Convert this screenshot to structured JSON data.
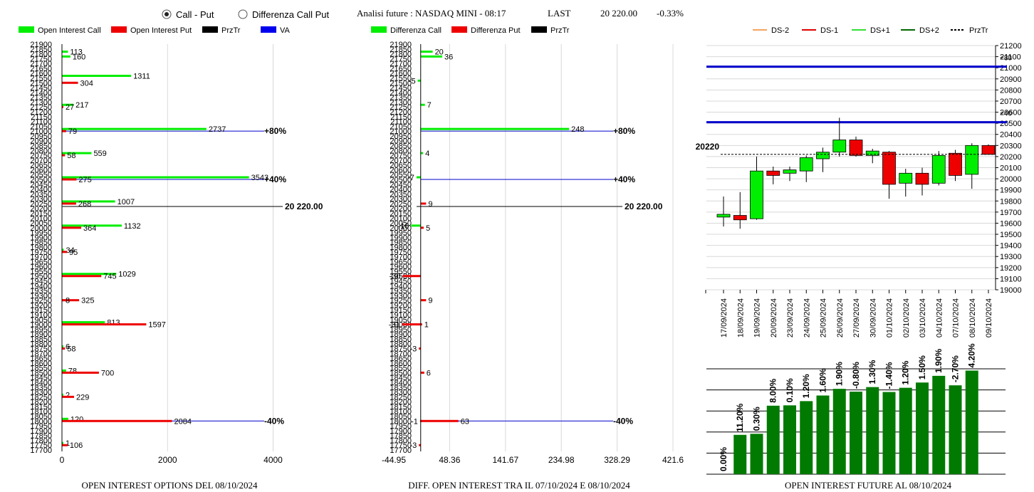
{
  "header": {
    "radio_call_put": "Call - Put",
    "radio_diff": "Differenza Call Put",
    "radio_selected": "call_put",
    "title": "Analisi future : NASDAQ MINI - 08:17",
    "last_label": "LAST",
    "last_value": "20 220.00",
    "change": "-0.33%"
  },
  "legends": {
    "oi": [
      {
        "label": "Open Interest Call",
        "color": "#00ee00"
      },
      {
        "label": "Open Interest Put",
        "color": "#ee0000"
      },
      {
        "label": "PrzTr",
        "color": "#000000"
      },
      {
        "label": "VA",
        "color": "#0000ee"
      }
    ],
    "diff": [
      {
        "label": "Differenza Call",
        "color": "#00ee00"
      },
      {
        "label": "Differenza Put",
        "color": "#ee0000"
      },
      {
        "label": "PrzTr",
        "color": "#000000"
      }
    ],
    "candle": [
      {
        "label": "DS-2",
        "color": "#f4a460",
        "style": "solid"
      },
      {
        "label": "DS-1",
        "color": "#dd0000",
        "style": "solid"
      },
      {
        "label": "DS+1",
        "color": "#33dd33",
        "style": "solid"
      },
      {
        "label": "DS+2",
        "color": "#006600",
        "style": "solid"
      },
      {
        "label": "PrzTr",
        "color": "#000000",
        "style": "dashed"
      }
    ]
  },
  "footer": {
    "oi": "OPEN INTEREST OPTIONS DEL 08/10/2024",
    "diff": "DIFF. OPEN INTEREST TRA IL 07/10/2024 E 08/10/2024",
    "future": "OPEN INTEREST FUTURE AL 08/10/2024"
  },
  "chart_data": [
    {
      "id": "oi",
      "type": "bar",
      "orientation": "horizontal",
      "strikes": [
        "21900",
        "21850",
        "21800",
        "21750",
        "21700",
        "21650",
        "21600",
        "21550",
        "21500",
        "21450",
        "21400",
        "21350",
        "21300",
        "21250",
        "21200",
        "21150",
        "21100",
        "21050",
        "21000",
        "20950",
        "20900",
        "20850",
        "20800",
        "20750",
        "20700",
        "20650",
        "20600",
        "20550",
        "20500",
        "20450",
        "20400",
        "20350",
        "20300",
        "20250",
        "20200",
        "20150",
        "20100",
        "20050",
        "20000",
        "19950",
        "19900",
        "19850",
        "19800",
        "19750",
        "19700",
        "19650",
        "19600",
        "19550",
        "19500",
        "19450",
        "19400",
        "19350",
        "19300",
        "19250",
        "19200",
        "19150",
        "19100",
        "19050",
        "19000",
        "18950",
        "18900",
        "18850",
        "18800",
        "18750",
        "18700",
        "18650",
        "18600",
        "18550",
        "18500",
        "18450",
        "18400",
        "18350",
        "18300",
        "18250",
        "18200",
        "18150",
        "18100",
        "18050",
        "18000",
        "17950",
        "17900",
        "17850",
        "17800",
        "17750",
        "17700"
      ],
      "xticks": [
        "0",
        "2000",
        "4000"
      ],
      "xlim": [
        0,
        4600
      ],
      "series": [
        {
          "name": "Open Interest Call",
          "color": "#00ee00",
          "points": [
            {
              "strike": 21800,
              "value": 113
            },
            {
              "strike": 21750,
              "value": 160
            },
            {
              "strike": 21550,
              "value": 1311
            },
            {
              "strike": 21250,
              "value": 217
            },
            {
              "strike": 21000,
              "value": 2737
            },
            {
              "strike": 20750,
              "value": 559
            },
            {
              "strike": 20500,
              "value": 3543
            },
            {
              "strike": 20250,
              "value": 1007
            },
            {
              "strike": 20000,
              "value": 1132
            },
            {
              "strike": 19750,
              "value": 34
            },
            {
              "strike": 19500,
              "value": 1029
            },
            {
              "strike": 19000,
              "value": 813
            },
            {
              "strike": 18750,
              "value": 6
            },
            {
              "strike": 18500,
              "value": 78
            },
            {
              "strike": 18250,
              "value": 2
            },
            {
              "strike": 18000,
              "value": 120
            },
            {
              "strike": 17750,
              "value": 1
            }
          ]
        },
        {
          "name": "Open Interest Put",
          "color": "#ee0000",
          "points": [
            {
              "strike": 21500,
              "value": 304
            },
            {
              "strike": 21250,
              "value": 27
            },
            {
              "strike": 21000,
              "value": 79
            },
            {
              "strike": 20750,
              "value": 58
            },
            {
              "strike": 20500,
              "value": 275
            },
            {
              "strike": 20250,
              "value": 268
            },
            {
              "strike": 20000,
              "value": 364
            },
            {
              "strike": 19750,
              "value": 95
            },
            {
              "strike": 19500,
              "value": 745
            },
            {
              "strike": 19250,
              "value": 325
            },
            {
              "strike": 19250,
              "value": 8
            },
            {
              "strike": 19000,
              "value": 1597
            },
            {
              "strike": 18750,
              "value": 58
            },
            {
              "strike": 18500,
              "value": 700
            },
            {
              "strike": 18250,
              "value": 229
            },
            {
              "strike": 18000,
              "value": 2084
            },
            {
              "strike": 17750,
              "value": 106
            }
          ]
        }
      ],
      "va_lines": [
        {
          "strike": 21000,
          "label": "+80%"
        },
        {
          "strike": 20500,
          "label": "+40%"
        },
        {
          "strike": 18000,
          "label": "-40%"
        }
      ],
      "price_line": {
        "value": 20220,
        "label": "20 220.00"
      }
    },
    {
      "id": "diff",
      "type": "bar",
      "orientation": "horizontal",
      "xticks": [
        "-44.95",
        "48.36",
        "141.67",
        "234.98",
        "328.29",
        "421.6"
      ],
      "xlim": [
        -44.95,
        421.6
      ],
      "series": [
        {
          "name": "Differenza Call",
          "color": "#00ee00",
          "points": [
            {
              "strike": 21800,
              "value": 20
            },
            {
              "strike": 21750,
              "value": 36
            },
            {
              "strike": 21500,
              "value": -5
            },
            {
              "strike": 21250,
              "value": 7
            },
            {
              "strike": 21000,
              "value": 248
            },
            {
              "strike": 20750,
              "value": 4
            },
            {
              "strike": 20500,
              "value": -7
            },
            {
              "strike": 20000,
              "value": -16
            }
          ]
        },
        {
          "name": "Differenza Put",
          "color": "#ee0000",
          "points": [
            {
              "strike": 20250,
              "value": 9
            },
            {
              "strike": 20000,
              "value": 5
            },
            {
              "strike": 19500,
              "value": -30
            },
            {
              "strike": 19250,
              "value": 9
            },
            {
              "strike": 19000,
              "value": -31
            },
            {
              "strike": 19000,
              "value": 1
            },
            {
              "strike": 18750,
              "value": -3
            },
            {
              "strike": 18500,
              "value": 6
            },
            {
              "strike": 18000,
              "value": -1
            },
            {
              "strike": 18000,
              "value": 63
            },
            {
              "strike": 17750,
              "value": -3
            }
          ]
        }
      ],
      "va_lines": [
        {
          "strike": 21000,
          "label": "+80%"
        },
        {
          "strike": 20500,
          "label": "+40%"
        },
        {
          "strike": 18000,
          "label": "-40%"
        }
      ],
      "price_line": {
        "value": 20220,
        "label": "20 220.00"
      }
    },
    {
      "id": "candles",
      "type": "candlestick",
      "dates": [
        "17/09/2024",
        "18/09/2024",
        "19/09/2024",
        "20/09/2024",
        "23/09/2024",
        "24/09/2024",
        "25/09/2024",
        "26/09/2024",
        "27/09/2024",
        "30/09/2024",
        "01/10/2024",
        "02/10/2024",
        "03/10/2024",
        "04/10/2024",
        "07/10/2024",
        "08/10/2024",
        "09/10/2024"
      ],
      "ohlc": [
        {
          "o": 19655,
          "h": 19840,
          "l": 19570,
          "c": 19680
        },
        {
          "o": 19670,
          "h": 19880,
          "l": 19550,
          "c": 19630
        },
        {
          "o": 19640,
          "h": 20200,
          "l": 19630,
          "c": 20070
        },
        {
          "o": 20070,
          "h": 20110,
          "l": 19950,
          "c": 20030
        },
        {
          "o": 20050,
          "h": 20110,
          "l": 19980,
          "c": 20080
        },
        {
          "o": 20070,
          "h": 20210,
          "l": 19970,
          "c": 20190
        },
        {
          "o": 20180,
          "h": 20280,
          "l": 20060,
          "c": 20240
        },
        {
          "o": 20240,
          "h": 20550,
          "l": 20200,
          "c": 20350
        },
        {
          "o": 20350,
          "h": 20380,
          "l": 20200,
          "c": 20210
        },
        {
          "o": 20210,
          "h": 20270,
          "l": 20140,
          "c": 20250
        },
        {
          "o": 20240,
          "h": 20250,
          "l": 19820,
          "c": 19950
        },
        {
          "o": 19960,
          "h": 20090,
          "l": 19840,
          "c": 20050
        },
        {
          "o": 20050,
          "h": 20100,
          "l": 19850,
          "c": 19950
        },
        {
          "o": 19960,
          "h": 20250,
          "l": 19940,
          "c": 20210
        },
        {
          "o": 20230,
          "h": 20260,
          "l": 19980,
          "c": 20030
        },
        {
          "o": 20040,
          "h": 20320,
          "l": 19910,
          "c": 20300
        },
        {
          "o": 20300,
          "h": 20310,
          "l": 20220,
          "c": 20220
        }
      ],
      "yticks": [
        "19000",
        "19100",
        "19200",
        "19300",
        "19400",
        "19500",
        "19600",
        "19700",
        "19800",
        "19900",
        "20000",
        "20100",
        "20200",
        "20300",
        "20400",
        "20500",
        "20600",
        "20700",
        "20800",
        "20900",
        "21000",
        "21100",
        "21200"
      ],
      "ylim": [
        19000,
        21200
      ],
      "levels": [
        {
          "value": 21010,
          "label": "+80",
          "color": "#0000cc"
        },
        {
          "value": 20510,
          "label": "+40",
          "color": "#0000cc"
        }
      ],
      "price_line": {
        "value": 20220,
        "label": "20220"
      }
    },
    {
      "id": "oi-future",
      "type": "bar",
      "labels": [
        "0.00%",
        "11.20%",
        "0.30%",
        "8.00%",
        "0.10%",
        "1.20%",
        "1.60%",
        "1.90%",
        "-0.80%",
        "1.30%",
        "-1.40%",
        "1.20%",
        "1.50%",
        "1.90%",
        "-2.70%",
        "4.20%"
      ],
      "values": [
        0,
        11.2,
        11.5,
        19.5,
        19.6,
        20.8,
        22.4,
        24.3,
        23.5,
        24.8,
        23.4,
        24.6,
        26.1,
        28.0,
        25.3,
        29.5
      ],
      "ylim": [
        0,
        30
      ],
      "color": "#007a00"
    }
  ]
}
